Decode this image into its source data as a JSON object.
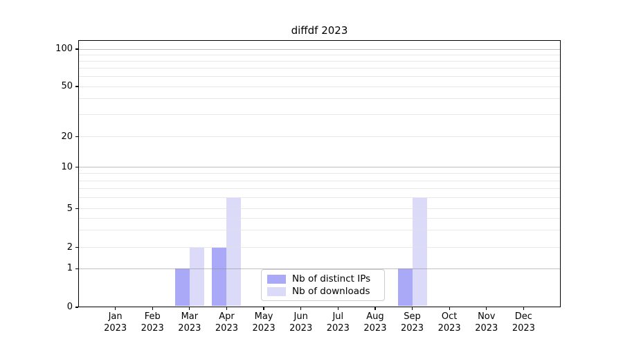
{
  "chart_data": {
    "type": "bar",
    "title": "diffdf 2023",
    "categories": [
      "Jan",
      "Feb",
      "Mar",
      "Apr",
      "May",
      "Jun",
      "Jul",
      "Aug",
      "Sep",
      "Oct",
      "Nov",
      "Dec"
    ],
    "category_year": "2023",
    "series": [
      {
        "name": "Nb of distinct IPs",
        "color": "#a9a9f7",
        "values": [
          0,
          0,
          1,
          2,
          0,
          0,
          0,
          0,
          1,
          0,
          0,
          0
        ]
      },
      {
        "name": "Nb of downloads",
        "color": "#dbdbf9",
        "values": [
          0,
          0,
          2,
          6,
          0,
          0,
          0,
          0,
          6,
          0,
          0,
          0
        ]
      }
    ],
    "yscale": "symlog",
    "yticks": [
      0,
      1,
      2,
      5,
      10,
      20,
      50,
      100
    ],
    "ytick_labels": [
      "0",
      "1",
      "2",
      "5",
      "10",
      "20",
      "50",
      "100"
    ],
    "ylim": [
      0,
      120
    ],
    "xlabel": "",
    "ylabel": "",
    "grid": "horizontal",
    "major_grid_values": [
      1,
      10,
      100
    ],
    "minor_grid_values": [
      2,
      3,
      4,
      5,
      6,
      7,
      8,
      9,
      20,
      30,
      40,
      50,
      60,
      70,
      80,
      90
    ],
    "legend_position": "lower center"
  },
  "colors": {
    "background": "#ffffff",
    "spine": "#000000",
    "legend_border": "#cccccc"
  }
}
